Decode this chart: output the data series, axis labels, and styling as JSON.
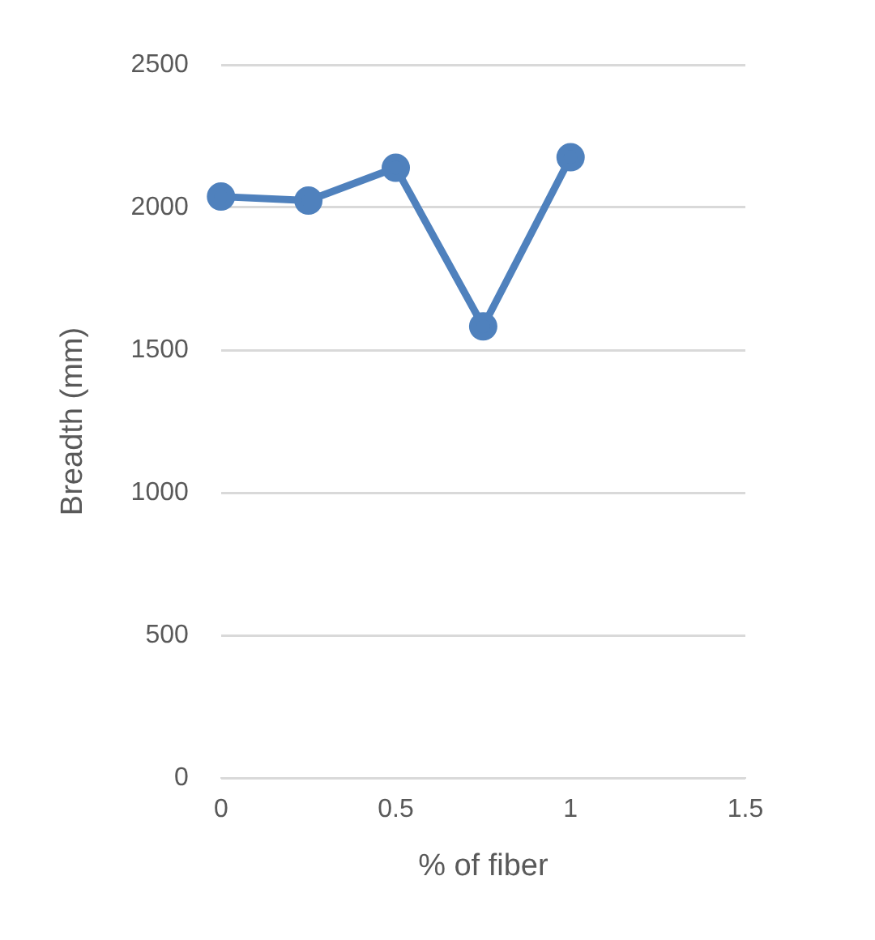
{
  "chart_data": {
    "type": "line",
    "xlabel": "% of fiber",
    "ylabel": "Breadth (mm)",
    "x": [
      0,
      0.25,
      0.5,
      0.75,
      1
    ],
    "series": [
      {
        "color": "#4f81bd",
        "values": [
          2038,
          2024,
          2139,
          1583,
          2176
        ]
      }
    ],
    "xlim": [
      0,
      1.5
    ],
    "xticks": [
      0,
      0.5,
      1,
      1.5
    ],
    "ylim": [
      0,
      2500
    ],
    "yticks": [
      0,
      500,
      1000,
      1500,
      2000,
      2500
    ],
    "grid": "y",
    "legend": false,
    "marker": "circle",
    "line_style": "solid"
  }
}
